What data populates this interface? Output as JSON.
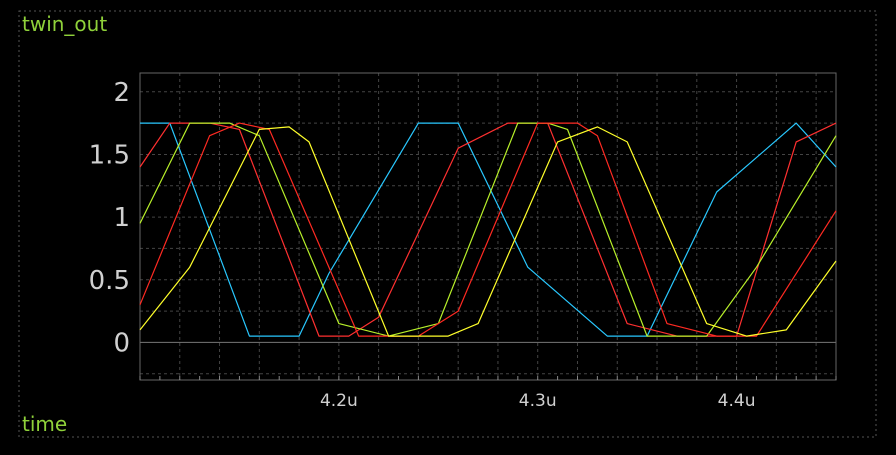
{
  "chart_data": {
    "type": "line",
    "title": "twin_out",
    "xlabel": "time",
    "xlim": [
      4.1,
      4.45
    ],
    "ylim": [
      -0.3,
      2.15
    ],
    "x_ticks": [
      {
        "value": 4.2,
        "label": "4.2u"
      },
      {
        "value": 4.3,
        "label": "4.3u"
      },
      {
        "value": 4.4,
        "label": "4.4u"
      }
    ],
    "y_ticks": [
      {
        "value": 0,
        "label": "0"
      },
      {
        "value": 0.5,
        "label": "0.5"
      },
      {
        "value": 1,
        "label": "1"
      },
      {
        "value": 1.5,
        "label": "1.5"
      },
      {
        "value": 2,
        "label": "2"
      }
    ],
    "grid": true,
    "series": [
      {
        "color": "#29c8ff",
        "x": [
          4.1,
          4.115,
          4.155,
          4.18,
          4.195,
          4.24,
          4.26,
          4.295,
          4.335,
          4.355,
          4.39,
          4.43,
          4.45
        ],
        "values": [
          1.75,
          1.75,
          0.05,
          0.05,
          0.55,
          1.75,
          1.75,
          0.6,
          0.05,
          0.05,
          1.2,
          1.75,
          1.4
        ]
      },
      {
        "color": "#ff3030",
        "x": [
          4.1,
          4.115,
          4.135,
          4.15,
          4.19,
          4.205,
          4.22,
          4.26,
          4.285,
          4.305,
          4.345,
          4.37,
          4.4,
          4.43,
          4.45
        ],
        "values": [
          1.4,
          1.75,
          1.75,
          1.7,
          0.05,
          0.05,
          0.2,
          1.55,
          1.75,
          1.75,
          0.15,
          0.05,
          0.05,
          1.6,
          1.75
        ]
      },
      {
        "color": "#b8f02a",
        "x": [
          4.1,
          4.125,
          4.145,
          4.16,
          4.2,
          4.225,
          4.25,
          4.29,
          4.305,
          4.315,
          4.355,
          4.385,
          4.41,
          4.45
        ],
        "values": [
          0.95,
          1.75,
          1.75,
          1.65,
          0.15,
          0.05,
          0.15,
          1.75,
          1.75,
          1.7,
          0.05,
          0.05,
          0.6,
          1.65
        ]
      },
      {
        "color": "#ff2a22",
        "x": [
          4.1,
          4.135,
          4.15,
          4.165,
          4.21,
          4.24,
          4.26,
          4.3,
          4.32,
          4.33,
          4.365,
          4.39,
          4.41,
          4.45
        ],
        "values": [
          0.3,
          1.65,
          1.75,
          1.7,
          0.05,
          0.05,
          0.25,
          1.75,
          1.75,
          1.65,
          0.15,
          0.05,
          0.05,
          1.05
        ]
      },
      {
        "color": "#ffff2a",
        "x": [
          4.1,
          4.125,
          4.16,
          4.175,
          4.185,
          4.225,
          4.255,
          4.27,
          4.31,
          4.33,
          4.345,
          4.385,
          4.405,
          4.425,
          4.45
        ],
        "values": [
          0.1,
          0.6,
          1.7,
          1.72,
          1.6,
          0.05,
          0.05,
          0.15,
          1.6,
          1.72,
          1.6,
          0.15,
          0.05,
          0.1,
          0.65
        ]
      }
    ]
  }
}
